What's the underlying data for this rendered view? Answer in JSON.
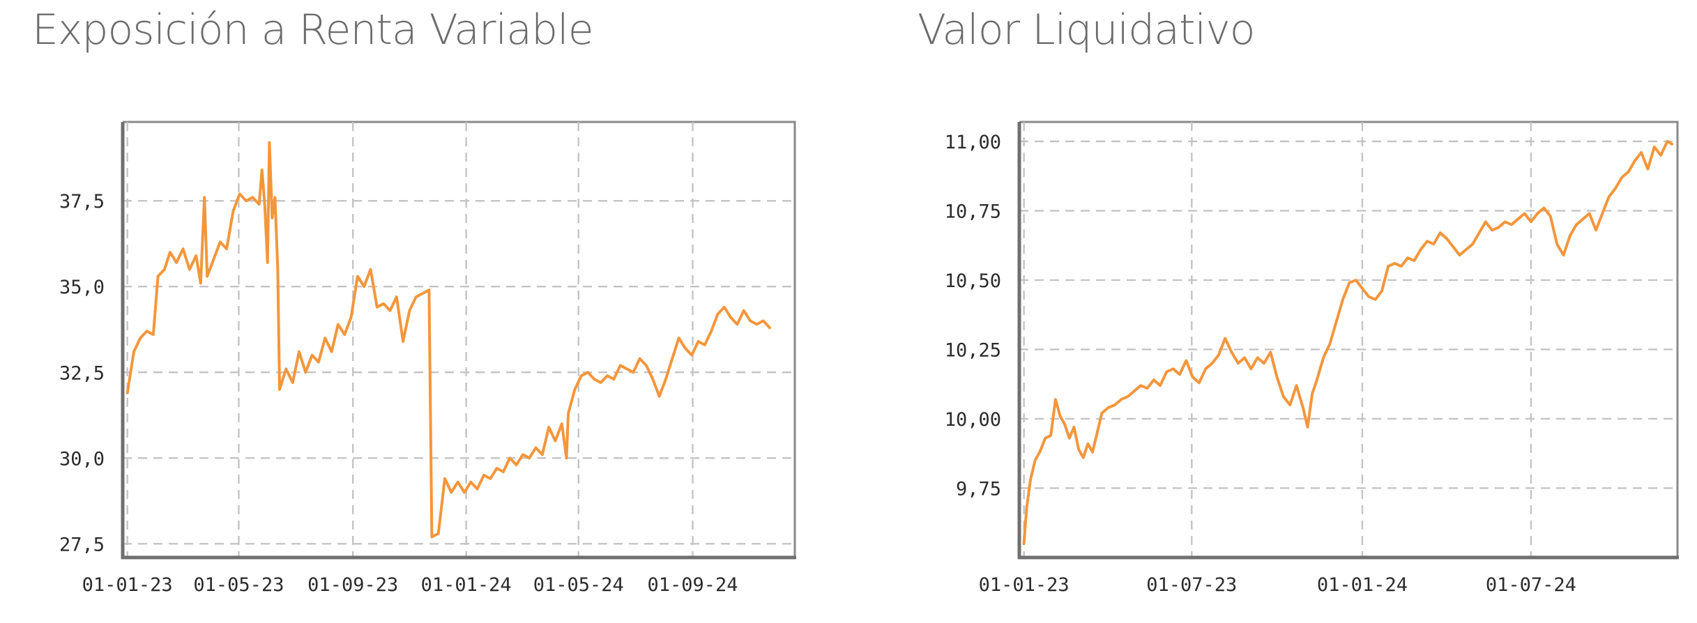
{
  "colors": {
    "series": "#f4963c",
    "grid": "#c4c4c4",
    "frame": "#8a8a8a",
    "axis": "#6f6f6f",
    "title": "#6b6b6b"
  },
  "chart_data": [
    {
      "type": "line",
      "title": "Exposición a Renta Variable",
      "xlabel": "",
      "ylabel": "",
      "x_ticks": [
        "01-01-23",
        "01-05-23",
        "01-09-23",
        "01-01-24",
        "01-05-24",
        "01-09-24"
      ],
      "x_tick_dates": [
        "2023-01-01",
        "2023-05-01",
        "2023-09-01",
        "2024-01-01",
        "2024-05-01",
        "2024-09-01"
      ],
      "y_ticks": [
        27.5,
        30.0,
        32.5,
        35.0,
        37.5
      ],
      "y_tick_labels": [
        "27,5",
        "30,0",
        "32,5",
        "35,0",
        "37,5"
      ],
      "xlim": [
        "2022-12-27",
        "2024-12-20"
      ],
      "ylim": [
        27.1,
        39.8
      ],
      "grid": true,
      "legend": "none",
      "series": [
        {
          "points": [
            [
              "2023-01-01",
              31.9
            ],
            [
              "2023-01-08",
              33.1
            ],
            [
              "2023-01-15",
              33.5
            ],
            [
              "2023-01-22",
              33.7
            ],
            [
              "2023-01-29",
              33.6
            ],
            [
              "2023-02-03",
              35.3
            ],
            [
              "2023-02-10",
              35.5
            ],
            [
              "2023-02-16",
              36.0
            ],
            [
              "2023-02-23",
              35.7
            ],
            [
              "2023-03-02",
              36.1
            ],
            [
              "2023-03-09",
              35.5
            ],
            [
              "2023-03-16",
              35.9
            ],
            [
              "2023-03-21",
              35.1
            ],
            [
              "2023-03-25",
              37.6
            ],
            [
              "2023-03-28",
              35.3
            ],
            [
              "2023-04-04",
              35.8
            ],
            [
              "2023-04-11",
              36.3
            ],
            [
              "2023-04-18",
              36.1
            ],
            [
              "2023-04-25",
              37.2
            ],
            [
              "2023-05-02",
              37.7
            ],
            [
              "2023-05-09",
              37.5
            ],
            [
              "2023-05-16",
              37.6
            ],
            [
              "2023-05-23",
              37.4
            ],
            [
              "2023-05-26",
              38.4
            ],
            [
              "2023-05-29",
              37.4
            ],
            [
              "2023-06-01",
              35.7
            ],
            [
              "2023-06-03",
              39.2
            ],
            [
              "2023-06-06",
              37.0
            ],
            [
              "2023-06-09",
              37.6
            ],
            [
              "2023-06-12",
              35.5
            ],
            [
              "2023-06-14",
              32.0
            ],
            [
              "2023-06-21",
              32.6
            ],
            [
              "2023-06-28",
              32.2
            ],
            [
              "2023-07-05",
              33.1
            ],
            [
              "2023-07-12",
              32.5
            ],
            [
              "2023-07-19",
              33.0
            ],
            [
              "2023-07-26",
              32.8
            ],
            [
              "2023-08-02",
              33.5
            ],
            [
              "2023-08-09",
              33.1
            ],
            [
              "2023-08-16",
              33.9
            ],
            [
              "2023-08-23",
              33.6
            ],
            [
              "2023-08-30",
              34.1
            ],
            [
              "2023-09-06",
              35.3
            ],
            [
              "2023-09-13",
              35.0
            ],
            [
              "2023-09-20",
              35.5
            ],
            [
              "2023-09-27",
              34.4
            ],
            [
              "2023-10-04",
              34.5
            ],
            [
              "2023-10-11",
              34.3
            ],
            [
              "2023-10-18",
              34.7
            ],
            [
              "2023-10-25",
              33.4
            ],
            [
              "2023-11-01",
              34.3
            ],
            [
              "2023-11-08",
              34.7
            ],
            [
              "2023-11-15",
              34.8
            ],
            [
              "2023-11-22",
              34.9
            ],
            [
              "2023-11-25",
              27.7
            ],
            [
              "2023-12-02",
              27.8
            ],
            [
              "2023-12-09",
              29.4
            ],
            [
              "2023-12-16",
              29.0
            ],
            [
              "2023-12-23",
              29.3
            ],
            [
              "2023-12-30",
              29.0
            ],
            [
              "2024-01-06",
              29.3
            ],
            [
              "2024-01-13",
              29.1
            ],
            [
              "2024-01-20",
              29.5
            ],
            [
              "2024-01-27",
              29.4
            ],
            [
              "2024-02-03",
              29.7
            ],
            [
              "2024-02-10",
              29.6
            ],
            [
              "2024-02-17",
              30.0
            ],
            [
              "2024-02-24",
              29.8
            ],
            [
              "2024-03-02",
              30.1
            ],
            [
              "2024-03-09",
              30.0
            ],
            [
              "2024-03-16",
              30.3
            ],
            [
              "2024-03-23",
              30.1
            ],
            [
              "2024-03-30",
              30.9
            ],
            [
              "2024-04-06",
              30.5
            ],
            [
              "2024-04-13",
              31.0
            ],
            [
              "2024-04-18",
              30.0
            ],
            [
              "2024-04-20",
              31.3
            ],
            [
              "2024-04-27",
              32.0
            ],
            [
              "2024-05-04",
              32.4
            ],
            [
              "2024-05-11",
              32.5
            ],
            [
              "2024-05-18",
              32.3
            ],
            [
              "2024-05-25",
              32.2
            ],
            [
              "2024-06-01",
              32.4
            ],
            [
              "2024-06-08",
              32.3
            ],
            [
              "2024-06-15",
              32.7
            ],
            [
              "2024-06-22",
              32.6
            ],
            [
              "2024-06-29",
              32.5
            ],
            [
              "2024-07-06",
              32.9
            ],
            [
              "2024-07-13",
              32.7
            ],
            [
              "2024-07-20",
              32.3
            ],
            [
              "2024-07-27",
              31.8
            ],
            [
              "2024-08-03",
              32.3
            ],
            [
              "2024-08-10",
              32.9
            ],
            [
              "2024-08-17",
              33.5
            ],
            [
              "2024-08-24",
              33.2
            ],
            [
              "2024-08-31",
              33.0
            ],
            [
              "2024-09-07",
              33.4
            ],
            [
              "2024-09-14",
              33.3
            ],
            [
              "2024-09-21",
              33.7
            ],
            [
              "2024-09-28",
              34.2
            ],
            [
              "2024-10-05",
              34.4
            ],
            [
              "2024-10-12",
              34.1
            ],
            [
              "2024-10-19",
              33.9
            ],
            [
              "2024-10-26",
              34.3
            ],
            [
              "2024-11-02",
              34.0
            ],
            [
              "2024-11-09",
              33.9
            ],
            [
              "2024-11-16",
              34.0
            ],
            [
              "2024-11-23",
              33.8
            ]
          ]
        }
      ]
    },
    {
      "type": "line",
      "title": "Valor Liquidativo",
      "xlabel": "",
      "ylabel": "",
      "x_ticks": [
        "01-01-23",
        "01-07-23",
        "01-01-24",
        "01-07-24"
      ],
      "x_tick_dates": [
        "2023-01-01",
        "2023-07-01",
        "2024-01-01",
        "2024-07-01"
      ],
      "y_ticks": [
        9.75,
        10.0,
        10.25,
        10.5,
        10.75,
        11.0
      ],
      "y_tick_labels": [
        "9,75",
        "10,00",
        "10,25",
        "10,50",
        "10,75",
        "11,00"
      ],
      "xlim": [
        "2022-12-27",
        "2024-12-06"
      ],
      "ylim": [
        9.5,
        11.07
      ],
      "grid": true,
      "legend": "none",
      "series": [
        {
          "points": [
            [
              "2023-01-01",
              9.55
            ],
            [
              "2023-01-04",
              9.68
            ],
            [
              "2023-01-08",
              9.78
            ],
            [
              "2023-01-13",
              9.85
            ],
            [
              "2023-01-18",
              9.88
            ],
            [
              "2023-01-24",
              9.93
            ],
            [
              "2023-01-30",
              9.94
            ],
            [
              "2023-02-04",
              10.07
            ],
            [
              "2023-02-09",
              10.01
            ],
            [
              "2023-02-14",
              9.98
            ],
            [
              "2023-02-19",
              9.93
            ],
            [
              "2023-02-24",
              9.97
            ],
            [
              "2023-03-01",
              9.89
            ],
            [
              "2023-03-06",
              9.86
            ],
            [
              "2023-03-11",
              9.91
            ],
            [
              "2023-03-16",
              9.88
            ],
            [
              "2023-03-21",
              9.95
            ],
            [
              "2023-03-26",
              10.02
            ],
            [
              "2023-04-02",
              10.04
            ],
            [
              "2023-04-09",
              10.05
            ],
            [
              "2023-04-16",
              10.07
            ],
            [
              "2023-04-23",
              10.08
            ],
            [
              "2023-04-30",
              10.1
            ],
            [
              "2023-05-07",
              10.12
            ],
            [
              "2023-05-14",
              10.11
            ],
            [
              "2023-05-21",
              10.14
            ],
            [
              "2023-05-28",
              10.12
            ],
            [
              "2023-06-04",
              10.17
            ],
            [
              "2023-06-11",
              10.18
            ],
            [
              "2023-06-18",
              10.16
            ],
            [
              "2023-06-25",
              10.21
            ],
            [
              "2023-07-02",
              10.15
            ],
            [
              "2023-07-09",
              10.13
            ],
            [
              "2023-07-16",
              10.18
            ],
            [
              "2023-07-23",
              10.2
            ],
            [
              "2023-07-30",
              10.23
            ],
            [
              "2023-08-06",
              10.29
            ],
            [
              "2023-08-13",
              10.24
            ],
            [
              "2023-08-20",
              10.2
            ],
            [
              "2023-08-27",
              10.22
            ],
            [
              "2023-09-03",
              10.18
            ],
            [
              "2023-09-10",
              10.22
            ],
            [
              "2023-09-17",
              10.2
            ],
            [
              "2023-09-24",
              10.24
            ],
            [
              "2023-10-01",
              10.15
            ],
            [
              "2023-10-08",
              10.08
            ],
            [
              "2023-10-15",
              10.05
            ],
            [
              "2023-10-22",
              10.12
            ],
            [
              "2023-10-29",
              10.04
            ],
            [
              "2023-11-03",
              9.97
            ],
            [
              "2023-11-08",
              10.09
            ],
            [
              "2023-11-13",
              10.14
            ],
            [
              "2023-11-20",
              10.22
            ],
            [
              "2023-11-27",
              10.27
            ],
            [
              "2023-12-04",
              10.35
            ],
            [
              "2023-12-11",
              10.43
            ],
            [
              "2023-12-18",
              10.49
            ],
            [
              "2023-12-25",
              10.5
            ],
            [
              "2024-01-01",
              10.47
            ],
            [
              "2024-01-08",
              10.44
            ],
            [
              "2024-01-15",
              10.43
            ],
            [
              "2024-01-22",
              10.46
            ],
            [
              "2024-01-29",
              10.55
            ],
            [
              "2024-02-05",
              10.56
            ],
            [
              "2024-02-12",
              10.55
            ],
            [
              "2024-02-19",
              10.58
            ],
            [
              "2024-02-26",
              10.57
            ],
            [
              "2024-03-04",
              10.61
            ],
            [
              "2024-03-11",
              10.64
            ],
            [
              "2024-03-18",
              10.63
            ],
            [
              "2024-03-25",
              10.67
            ],
            [
              "2024-04-01",
              10.65
            ],
            [
              "2024-04-08",
              10.62
            ],
            [
              "2024-04-15",
              10.59
            ],
            [
              "2024-04-22",
              10.61
            ],
            [
              "2024-04-29",
              10.63
            ],
            [
              "2024-05-06",
              10.67
            ],
            [
              "2024-05-13",
              10.71
            ],
            [
              "2024-05-20",
              10.68
            ],
            [
              "2024-05-27",
              10.69
            ],
            [
              "2024-06-03",
              10.71
            ],
            [
              "2024-06-10",
              10.7
            ],
            [
              "2024-06-17",
              10.72
            ],
            [
              "2024-06-24",
              10.74
            ],
            [
              "2024-07-01",
              10.71
            ],
            [
              "2024-07-08",
              10.74
            ],
            [
              "2024-07-15",
              10.76
            ],
            [
              "2024-07-22",
              10.73
            ],
            [
              "2024-07-29",
              10.63
            ],
            [
              "2024-08-05",
              10.59
            ],
            [
              "2024-08-12",
              10.66
            ],
            [
              "2024-08-19",
              10.7
            ],
            [
              "2024-08-26",
              10.72
            ],
            [
              "2024-09-02",
              10.74
            ],
            [
              "2024-09-09",
              10.68
            ],
            [
              "2024-09-16",
              10.74
            ],
            [
              "2024-09-23",
              10.8
            ],
            [
              "2024-09-30",
              10.83
            ],
            [
              "2024-10-07",
              10.87
            ],
            [
              "2024-10-14",
              10.89
            ],
            [
              "2024-10-21",
              10.93
            ],
            [
              "2024-10-28",
              10.96
            ],
            [
              "2024-11-04",
              10.9
            ],
            [
              "2024-11-11",
              10.98
            ],
            [
              "2024-11-18",
              10.95
            ],
            [
              "2024-11-25",
              11.0
            ],
            [
              "2024-11-30",
              10.99
            ]
          ]
        }
      ]
    }
  ]
}
